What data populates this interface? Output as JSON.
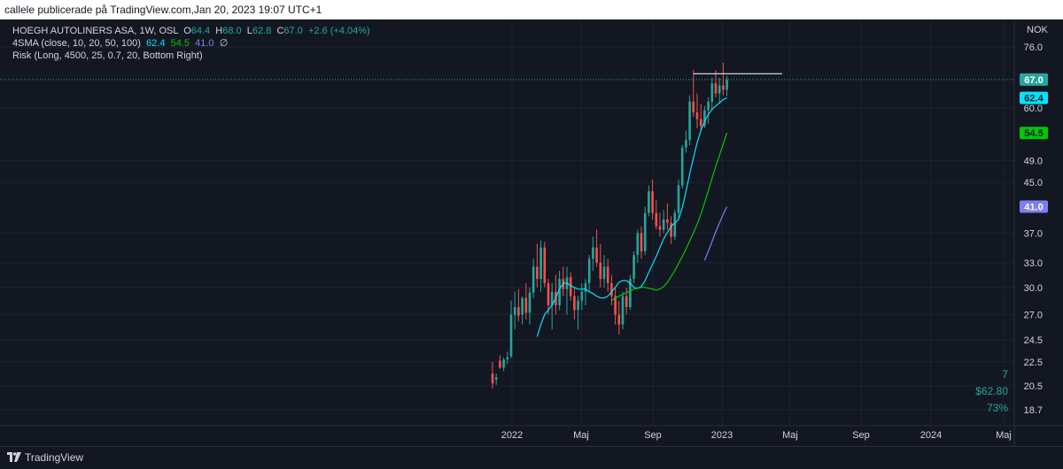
{
  "header": {
    "title": "callele publicerade på TradingView.com,Jan 20, 2023 19:07 UTC+1"
  },
  "legend": {
    "symbol": "HOEGH AUTOLINERS ASA, 1W, OSL",
    "o_label": "O",
    "o_value": "64.4",
    "h_label": "H",
    "h_value": "68.0",
    "l_label": "L",
    "l_value": "62.8",
    "c_label": "C",
    "c_value": "67.0",
    "change": "+2.6 (+4.04%)",
    "sma_label": "4SMA (close, 10, 20, 50, 100)",
    "sma10_value": "62.4",
    "sma20_value": "54.5",
    "sma50_value": "41.0",
    "sma100_value": "∅",
    "risk_label": "Risk (Long, 4500, 25, 0.7, 20, Bottom Right)"
  },
  "risk_box": {
    "line1": "7",
    "line2": "$62.80",
    "line3": "73%"
  },
  "footer": {
    "brand": "TradingView"
  },
  "colors": {
    "background": "#131722",
    "up": "#26a69a",
    "down": "#ef5350",
    "sma10": "#00e5ff",
    "sma20": "#00c805",
    "sma50": "#7b7ef2"
  },
  "chart_data": {
    "type": "candlestick",
    "currency": "NOK",
    "y_scale": "log",
    "y_ticks": [
      "76.0",
      "60.0",
      "49.0",
      "45.0",
      "37.0",
      "33.0",
      "30.0",
      "27.0",
      "24.5",
      "22.5",
      "20.5",
      "18.7"
    ],
    "x_ticks": [
      "2022",
      "Maj",
      "Sep",
      "2023",
      "Maj",
      "Sep",
      "2024",
      "Maj"
    ],
    "price_labels": [
      {
        "value": "67.0",
        "color": "#26a69a"
      },
      {
        "value": "62.4",
        "color": "#00e5ff"
      },
      {
        "value": "54.5",
        "color": "#00c805"
      },
      {
        "value": "41.0",
        "color": "#7b7ef2"
      }
    ],
    "candles": [
      {
        "o": 21.5,
        "h": 22.5,
        "l": 20.3,
        "c": 20.7
      },
      {
        "o": 21.0,
        "h": 21.5,
        "l": 20.6,
        "c": 21.2
      },
      {
        "o": 22.6,
        "h": 23.1,
        "l": 21.9,
        "c": 22.0
      },
      {
        "o": 22.0,
        "h": 22.9,
        "l": 21.7,
        "c": 22.7
      },
      {
        "o": 22.7,
        "h": 23.4,
        "l": 22.3,
        "c": 22.9
      },
      {
        "o": 23.0,
        "h": 28.5,
        "l": 22.8,
        "c": 27.0
      },
      {
        "o": 27.0,
        "h": 29.5,
        "l": 25.5,
        "c": 27.8
      },
      {
        "o": 27.8,
        "h": 29.8,
        "l": 26.3,
        "c": 26.9
      },
      {
        "o": 27.0,
        "h": 29.0,
        "l": 26.0,
        "c": 28.8
      },
      {
        "o": 28.8,
        "h": 30.5,
        "l": 26.5,
        "c": 27.2
      },
      {
        "o": 27.2,
        "h": 30.0,
        "l": 26.0,
        "c": 29.4
      },
      {
        "o": 29.4,
        "h": 33.5,
        "l": 28.8,
        "c": 32.5
      },
      {
        "o": 32.5,
        "h": 35.5,
        "l": 30.0,
        "c": 31.0
      },
      {
        "o": 31.0,
        "h": 36.0,
        "l": 29.5,
        "c": 35.0
      },
      {
        "o": 35.0,
        "h": 35.8,
        "l": 30.0,
        "c": 30.5
      },
      {
        "o": 30.5,
        "h": 31.0,
        "l": 27.0,
        "c": 28.0
      },
      {
        "o": 28.0,
        "h": 30.5,
        "l": 25.5,
        "c": 29.5
      },
      {
        "o": 29.5,
        "h": 31.5,
        "l": 27.0,
        "c": 28.0
      },
      {
        "o": 28.0,
        "h": 32.0,
        "l": 27.5,
        "c": 31.0
      },
      {
        "o": 31.0,
        "h": 32.5,
        "l": 29.0,
        "c": 29.8
      },
      {
        "o": 29.8,
        "h": 32.5,
        "l": 27.0,
        "c": 31.2
      },
      {
        "o": 31.2,
        "h": 31.8,
        "l": 28.5,
        "c": 29.0
      },
      {
        "o": 29.0,
        "h": 30.0,
        "l": 26.5,
        "c": 27.5
      },
      {
        "o": 27.5,
        "h": 29.0,
        "l": 25.5,
        "c": 28.5
      },
      {
        "o": 28.5,
        "h": 30.5,
        "l": 27.5,
        "c": 29.5
      },
      {
        "o": 29.5,
        "h": 31.0,
        "l": 28.0,
        "c": 30.5
      },
      {
        "o": 30.5,
        "h": 34.0,
        "l": 29.5,
        "c": 33.5
      },
      {
        "o": 33.5,
        "h": 36.5,
        "l": 32.0,
        "c": 35.0
      },
      {
        "o": 35.0,
        "h": 37.5,
        "l": 32.5,
        "c": 33.0
      },
      {
        "o": 33.0,
        "h": 35.5,
        "l": 30.0,
        "c": 31.0
      },
      {
        "o": 31.0,
        "h": 34.0,
        "l": 30.0,
        "c": 32.5
      },
      {
        "o": 32.5,
        "h": 33.5,
        "l": 29.5,
        "c": 30.5
      },
      {
        "o": 30.5,
        "h": 31.5,
        "l": 28.0,
        "c": 29.0
      },
      {
        "o": 29.0,
        "h": 30.0,
        "l": 26.0,
        "c": 27.0
      },
      {
        "o": 27.0,
        "h": 28.5,
        "l": 25.0,
        "c": 26.0
      },
      {
        "o": 26.0,
        "h": 29.5,
        "l": 25.5,
        "c": 29.0
      },
      {
        "o": 29.0,
        "h": 30.0,
        "l": 27.0,
        "c": 27.8
      },
      {
        "o": 27.8,
        "h": 31.5,
        "l": 27.5,
        "c": 31.0
      },
      {
        "o": 31.0,
        "h": 34.5,
        "l": 30.5,
        "c": 34.0
      },
      {
        "o": 34.0,
        "h": 37.5,
        "l": 33.0,
        "c": 37.0
      },
      {
        "o": 37.0,
        "h": 38.0,
        "l": 33.5,
        "c": 34.5
      },
      {
        "o": 34.5,
        "h": 41.0,
        "l": 34.0,
        "c": 40.0
      },
      {
        "o": 40.0,
        "h": 44.5,
        "l": 39.5,
        "c": 43.5
      },
      {
        "o": 43.5,
        "h": 45.5,
        "l": 39.0,
        "c": 40.0
      },
      {
        "o": 40.0,
        "h": 42.0,
        "l": 37.5,
        "c": 38.0
      },
      {
        "o": 38.0,
        "h": 40.0,
        "l": 36.5,
        "c": 37.5
      },
      {
        "o": 37.5,
        "h": 40.5,
        "l": 37.0,
        "c": 39.0
      },
      {
        "o": 39.0,
        "h": 41.5,
        "l": 37.5,
        "c": 38.5
      },
      {
        "o": 38.5,
        "h": 39.5,
        "l": 35.5,
        "c": 36.5
      },
      {
        "o": 36.5,
        "h": 40.5,
        "l": 36.0,
        "c": 40.0
      },
      {
        "o": 40.0,
        "h": 45.5,
        "l": 39.0,
        "c": 44.5
      },
      {
        "o": 44.5,
        "h": 52.0,
        "l": 44.0,
        "c": 51.5
      },
      {
        "o": 51.5,
        "h": 55.0,
        "l": 50.5,
        "c": 53.0
      },
      {
        "o": 53.0,
        "h": 63.0,
        "l": 52.0,
        "c": 61.5
      },
      {
        "o": 61.5,
        "h": 69.5,
        "l": 58.0,
        "c": 59.0
      },
      {
        "o": 59.0,
        "h": 63.5,
        "l": 55.5,
        "c": 57.5
      },
      {
        "o": 57.5,
        "h": 61.0,
        "l": 55.0,
        "c": 56.0
      },
      {
        "o": 56.0,
        "h": 60.5,
        "l": 55.5,
        "c": 59.5
      },
      {
        "o": 59.5,
        "h": 62.5,
        "l": 56.5,
        "c": 61.5
      },
      {
        "o": 61.5,
        "h": 67.5,
        "l": 59.5,
        "c": 66.0
      },
      {
        "o": 66.0,
        "h": 69.5,
        "l": 62.5,
        "c": 63.5
      },
      {
        "o": 63.5,
        "h": 67.5,
        "l": 61.0,
        "c": 65.5
      },
      {
        "o": 65.5,
        "h": 71.5,
        "l": 63.0,
        "c": 64.4
      },
      {
        "o": 64.4,
        "h": 68.0,
        "l": 62.8,
        "c": 67.0
      }
    ],
    "sma10": [
      24.8,
      26.0,
      27.0,
      27.5,
      28.0,
      28.8,
      29.8,
      30.5,
      30.5,
      30.2,
      30.0,
      29.8,
      29.8,
      29.8,
      29.5,
      29.3,
      29.0,
      28.8,
      28.8,
      29.0,
      29.5,
      30.0,
      30.6,
      30.8,
      30.8,
      30.5,
      30.0,
      29.9,
      30.1,
      30.8,
      31.8,
      32.8,
      33.8,
      35.0,
      36.2,
      37.1,
      38.0,
      38.5,
      39.0,
      40.8,
      43.5,
      46.5,
      49.5,
      52.5,
      55.0,
      57.0,
      58.5,
      59.7,
      60.5,
      61.2,
      62.0,
      62.4
    ],
    "sma20": [
      28.5,
      28.8,
      29.0,
      29.2,
      29.4,
      29.6,
      29.8,
      29.9,
      30.0,
      30.0,
      29.9,
      29.8,
      29.7,
      29.8,
      30.1,
      30.6,
      31.3,
      32.0,
      32.9,
      33.8,
      34.8,
      35.9,
      37.0,
      38.3,
      39.8,
      41.6,
      43.6,
      45.7,
      47.9,
      50.0,
      52.2,
      54.5
    ],
    "sma50": [
      33.3,
      34.5,
      35.8,
      37.2,
      38.5,
      39.8,
      41.0
    ],
    "resistance": 68.5
  }
}
